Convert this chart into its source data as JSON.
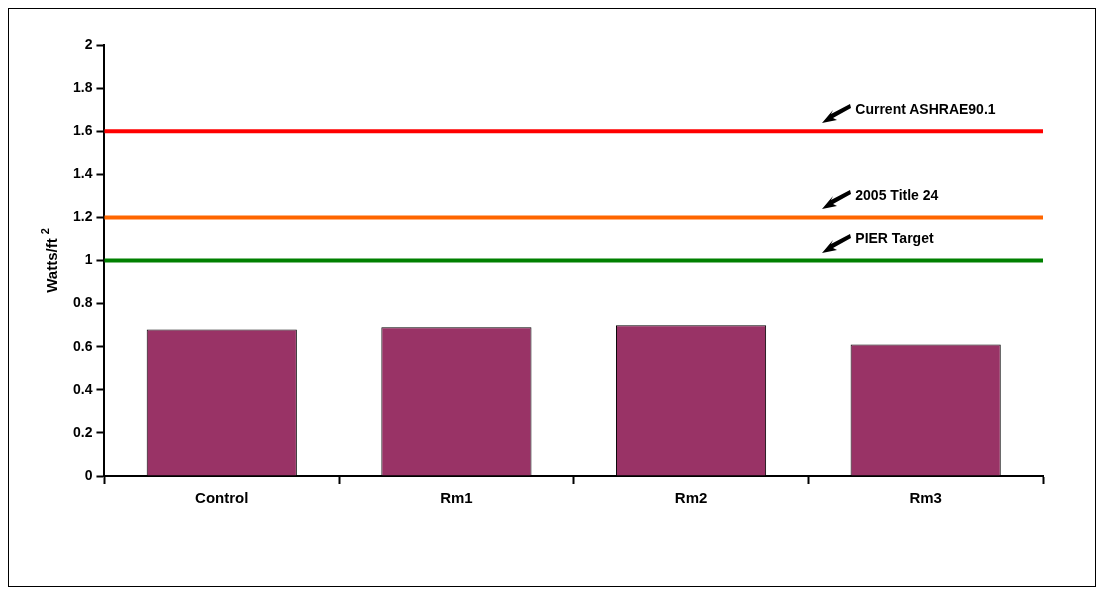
{
  "chart_data": {
    "type": "bar",
    "ylabel": "Watts/ft$^{2}$",
    "categories": [
      "Control",
      "Rm1",
      "Rm2",
      "Rm3"
    ],
    "values": [
      0.68,
      0.69,
      0.7,
      0.61
    ],
    "color": "#993366",
    "ylim": [
      0,
      2
    ],
    "yticks": [
      0,
      0.2,
      0.4,
      0.6,
      0.8,
      1,
      1.2,
      1.4,
      1.6,
      1.8,
      2
    ],
    "grid": false,
    "legend": false,
    "ref_lines": [
      {
        "axis": "y",
        "value": 1.6,
        "label": "Current ASHRAE90.1",
        "color": "#ff0000"
      },
      {
        "axis": "y",
        "value": 1.2,
        "label": "2005 Title 24",
        "color": "#ff6600"
      },
      {
        "axis": "y",
        "value": 1,
        "label": "PIER Target",
        "color": "#008000"
      }
    ]
  }
}
